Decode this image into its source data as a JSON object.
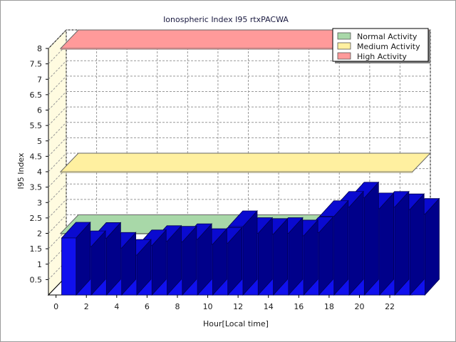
{
  "chart_data": {
    "type": "bar",
    "title": "Ionospheric Index I95 rtxPACWA",
    "xlabel": "Hour[Local time]",
    "ylabel": "I95 Index",
    "x": [
      0,
      1,
      2,
      3,
      4,
      5,
      6,
      7,
      8,
      9,
      10,
      11,
      12,
      13,
      14,
      15,
      16,
      17,
      18,
      19,
      20,
      21,
      22,
      23
    ],
    "x_tick_labels": [
      "0",
      "2",
      "4",
      "6",
      "8",
      "10",
      "12",
      "14",
      "16",
      "18",
      "20",
      "22"
    ],
    "y_tick_labels": [
      "0.5",
      "1",
      "1.5",
      "2",
      "2.5",
      "3",
      "3.5",
      "4",
      "4.5",
      "5",
      "5.5",
      "6",
      "6.5",
      "7",
      "7.5",
      "8"
    ],
    "ylim": [
      0,
      8
    ],
    "values": [
      1.85,
      1.57,
      1.84,
      1.52,
      1.29,
      1.6,
      1.74,
      1.72,
      1.8,
      1.64,
      1.68,
      2.22,
      2.0,
      1.97,
      2.0,
      1.92,
      2.02,
      2.55,
      2.85,
      3.15,
      2.8,
      2.85,
      2.77,
      2.62
    ],
    "bar_color": "#1010ee",
    "grid": true,
    "bands": [
      {
        "name": "Normal Activity",
        "value": 2.0,
        "color": "#a8d8a8"
      },
      {
        "name": "Medium Activity",
        "value": 4.0,
        "color": "#fff0a0"
      },
      {
        "name": "High Activity",
        "value": 8.0,
        "color": "#ff9a9a"
      }
    ],
    "legend_position": "top-right"
  }
}
